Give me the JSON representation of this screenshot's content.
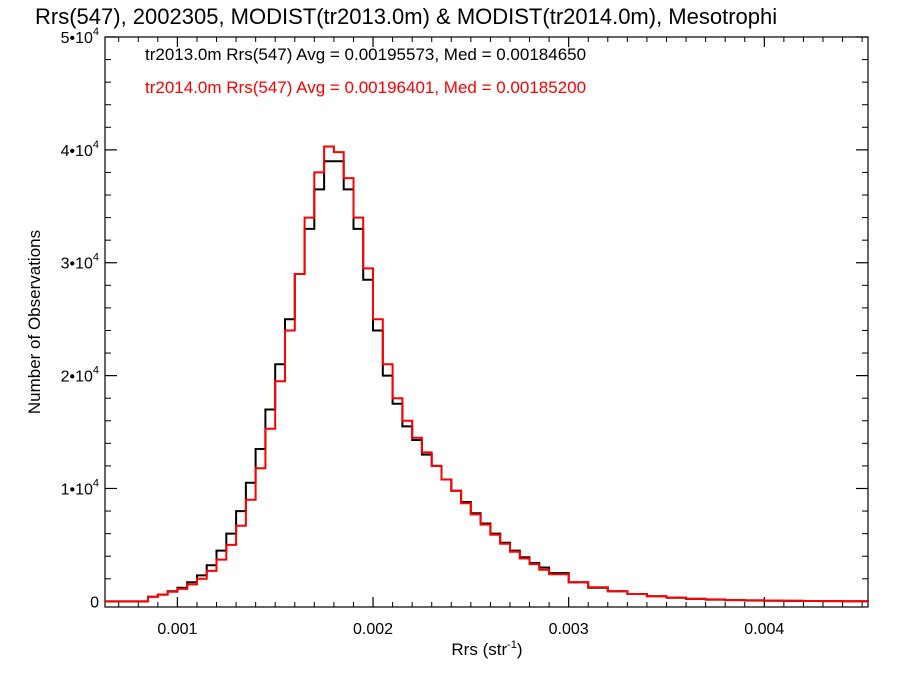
{
  "chart_data": {
    "type": "line",
    "title": "Rrs(547), 2002305, MODIST(tr2013.0m) & MODIST(tr2014.0m), Mesotrophi",
    "xlabel": "Rrs (str",
    "xlabel_sup": "-1",
    "xlabel_end": ")",
    "ylabel": "Number of Observations",
    "xlim": [
      0.00063,
      0.00453
    ],
    "ylim": [
      -500,
      50000
    ],
    "x_ticks": [
      {
        "value": 0.001,
        "label": "0.001"
      },
      {
        "value": 0.002,
        "label": "0.002"
      },
      {
        "value": 0.003,
        "label": "0.003"
      },
      {
        "value": 0.004,
        "label": "0.004"
      }
    ],
    "y_ticks": [
      {
        "value": 0,
        "label": "0",
        "exp": ""
      },
      {
        "value": 10000,
        "label": "1•10",
        "exp": "4"
      },
      {
        "value": 20000,
        "label": "2•10",
        "exp": "4"
      },
      {
        "value": 30000,
        "label": "3•10",
        "exp": "4"
      },
      {
        "value": 40000,
        "label": "4•10",
        "exp": "4"
      },
      {
        "value": 50000,
        "label": "5•10",
        "exp": "4"
      }
    ],
    "grid": false,
    "legend_position": "top-left",
    "series": [
      {
        "name": "tr2013.0m",
        "legend_text": "tr2013.0m Rrs(547) Avg = 0.00195573, Med = 0.00184650",
        "color": "#000000",
        "points": [
          [
            0.00063,
            0
          ],
          [
            0.0008,
            0
          ],
          [
            0.00085,
            400
          ],
          [
            0.0009,
            600
          ],
          [
            0.00095,
            900
          ],
          [
            0.001,
            1200
          ],
          [
            0.00105,
            1700
          ],
          [
            0.0011,
            2300
          ],
          [
            0.00115,
            3200
          ],
          [
            0.0012,
            4500
          ],
          [
            0.00125,
            6000
          ],
          [
            0.0013,
            8000
          ],
          [
            0.00135,
            10500
          ],
          [
            0.0014,
            13500
          ],
          [
            0.00145,
            17000
          ],
          [
            0.0015,
            21000
          ],
          [
            0.00155,
            25000
          ],
          [
            0.0016,
            29000
          ],
          [
            0.00165,
            33000
          ],
          [
            0.0017,
            36500
          ],
          [
            0.00175,
            39000
          ],
          [
            0.0018,
            39000
          ],
          [
            0.00185,
            36500
          ],
          [
            0.0019,
            33000
          ],
          [
            0.00195,
            28500
          ],
          [
            0.002,
            24000
          ],
          [
            0.00205,
            20000
          ],
          [
            0.0021,
            17500
          ],
          [
            0.00215,
            15500
          ],
          [
            0.0022,
            14300
          ],
          [
            0.00225,
            13000
          ],
          [
            0.0023,
            12000
          ],
          [
            0.00235,
            10800
          ],
          [
            0.0024,
            9800
          ],
          [
            0.00245,
            8800
          ],
          [
            0.0025,
            7800
          ],
          [
            0.00255,
            6900
          ],
          [
            0.0026,
            6000
          ],
          [
            0.00265,
            5200
          ],
          [
            0.0027,
            4500
          ],
          [
            0.00275,
            3900
          ],
          [
            0.0028,
            3400
          ],
          [
            0.00285,
            3000
          ],
          [
            0.0029,
            2500
          ],
          [
            0.003,
            1700
          ],
          [
            0.0031,
            1200
          ],
          [
            0.0032,
            900
          ],
          [
            0.0033,
            650
          ],
          [
            0.0034,
            450
          ],
          [
            0.0035,
            320
          ],
          [
            0.0036,
            220
          ],
          [
            0.0037,
            160
          ],
          [
            0.0038,
            110
          ],
          [
            0.0039,
            80
          ],
          [
            0.004,
            60
          ],
          [
            0.0041,
            40
          ],
          [
            0.0042,
            30
          ],
          [
            0.0043,
            20
          ],
          [
            0.0044,
            10
          ],
          [
            0.00453,
            5
          ]
        ]
      },
      {
        "name": "tr2014.0m",
        "legend_text": "tr2014.0m Rrs(547) Avg = 0.00196401, Med = 0.00185200",
        "color": "#ff0000",
        "points": [
          [
            0.00063,
            0
          ],
          [
            0.0008,
            0
          ],
          [
            0.00085,
            400
          ],
          [
            0.0009,
            600
          ],
          [
            0.00095,
            850
          ],
          [
            0.001,
            1100
          ],
          [
            0.00105,
            1500
          ],
          [
            0.0011,
            2000
          ],
          [
            0.00115,
            2700
          ],
          [
            0.0012,
            3700
          ],
          [
            0.00125,
            5000
          ],
          [
            0.0013,
            6700
          ],
          [
            0.00135,
            9000
          ],
          [
            0.0014,
            11800
          ],
          [
            0.00145,
            15300
          ],
          [
            0.0015,
            19500
          ],
          [
            0.00155,
            24000
          ],
          [
            0.0016,
            29000
          ],
          [
            0.00165,
            34000
          ],
          [
            0.0017,
            38000
          ],
          [
            0.00175,
            40300
          ],
          [
            0.0018,
            39800
          ],
          [
            0.00185,
            37500
          ],
          [
            0.0019,
            34000
          ],
          [
            0.00195,
            29500
          ],
          [
            0.002,
            25000
          ],
          [
            0.00205,
            21000
          ],
          [
            0.0021,
            18000
          ],
          [
            0.00215,
            16000
          ],
          [
            0.0022,
            14500
          ],
          [
            0.00225,
            13200
          ],
          [
            0.0023,
            12000
          ],
          [
            0.00235,
            10800
          ],
          [
            0.0024,
            9800
          ],
          [
            0.00245,
            8700
          ],
          [
            0.0025,
            7700
          ],
          [
            0.00255,
            6800
          ],
          [
            0.0026,
            5900
          ],
          [
            0.00265,
            5100
          ],
          [
            0.0027,
            4400
          ],
          [
            0.00275,
            3800
          ],
          [
            0.0028,
            3300
          ],
          [
            0.00285,
            2800
          ],
          [
            0.0029,
            2400
          ],
          [
            0.003,
            1700
          ],
          [
            0.0031,
            1250
          ],
          [
            0.0032,
            900
          ],
          [
            0.0033,
            650
          ],
          [
            0.0034,
            460
          ],
          [
            0.0035,
            330
          ],
          [
            0.0036,
            230
          ],
          [
            0.0037,
            170
          ],
          [
            0.0038,
            120
          ],
          [
            0.0039,
            90
          ],
          [
            0.004,
            65
          ],
          [
            0.0041,
            45
          ],
          [
            0.0042,
            30
          ],
          [
            0.0043,
            20
          ],
          [
            0.0044,
            10
          ],
          [
            0.00453,
            5
          ]
        ]
      }
    ]
  }
}
